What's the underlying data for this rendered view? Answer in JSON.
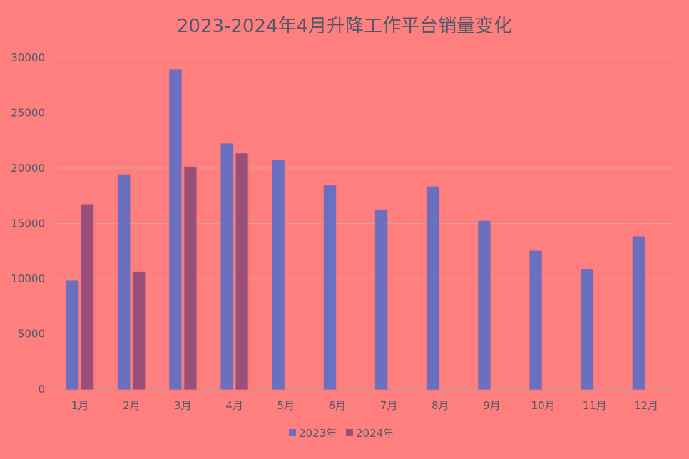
{
  "chart_data": {
    "type": "bar",
    "title": "2023-2024年4月升降工作平台销量变化",
    "xlabel": "",
    "ylabel": "",
    "categories": [
      "1月",
      "2月",
      "3月",
      "4月",
      "5月",
      "6月",
      "7月",
      "8月",
      "9月",
      "10月",
      "11月",
      "12月"
    ],
    "series": [
      {
        "name": "2023年",
        "color": "#6b6fc0",
        "values": [
          9800,
          19400,
          28900,
          22200,
          20700,
          18400,
          16200,
          18300,
          15200,
          12500,
          10800,
          13800
        ]
      },
      {
        "name": "2024年",
        "color": "#9a4e7a",
        "values": [
          16700,
          10600,
          20100,
          21300,
          null,
          null,
          null,
          null,
          null,
          null,
          null,
          null
        ]
      }
    ],
    "ylim": [
      0,
      30000
    ],
    "yticks": [
      0,
      5000,
      10000,
      15000,
      20000,
      25000,
      30000
    ],
    "grid": true,
    "legend_position": "bottom"
  }
}
